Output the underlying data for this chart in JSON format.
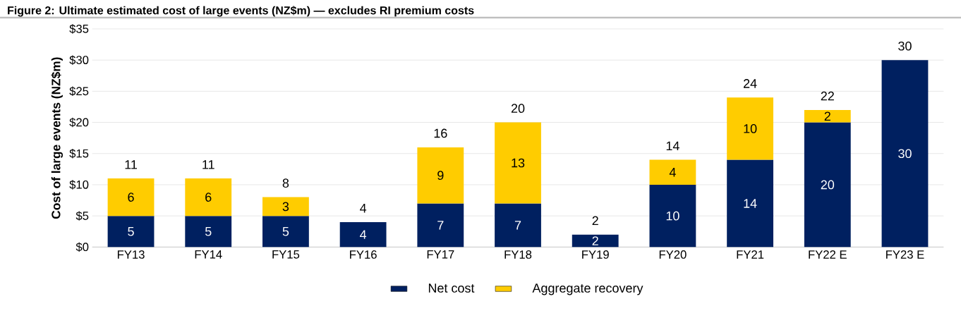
{
  "chart_data": {
    "type": "bar",
    "stacked": true,
    "title": "Figure 2: Ultimate estimated cost of large events (NZ$m) — excludes RI premium costs",
    "ylabel": "Cost of large events (NZ$m)",
    "categories": [
      "FY13",
      "FY14",
      "FY15",
      "FY16",
      "FY17",
      "FY18",
      "FY19",
      "FY20",
      "FY21",
      "FY22 E",
      "FY23 E"
    ],
    "series": [
      {
        "name": "Net cost",
        "color": "#002060",
        "values": [
          5,
          5,
          5,
          4,
          7,
          7,
          2,
          10,
          14,
          20,
          30
        ]
      },
      {
        "name": "Aggregate recovery",
        "color": "#ffcc00",
        "values": [
          6,
          6,
          3,
          null,
          9,
          13,
          null,
          4,
          10,
          2,
          null
        ]
      }
    ],
    "totals": [
      "11",
      "11",
      "8",
      "4",
      "16",
      "20",
      "2",
      "14",
      "24",
      "22",
      "30"
    ],
    "data_labels": true,
    "ylim": [
      0,
      35
    ],
    "yticks": [
      {
        "value": 0,
        "label": "$0"
      },
      {
        "value": 5,
        "label": "$5"
      },
      {
        "value": 10,
        "label": "$10"
      },
      {
        "value": 15,
        "label": "$15"
      },
      {
        "value": 20,
        "label": "$20"
      },
      {
        "value": 25,
        "label": "$25"
      },
      {
        "value": 30,
        "label": "$30"
      },
      {
        "value": 35,
        "label": "$35"
      }
    ],
    "grid": "y",
    "legend": "bottom"
  }
}
